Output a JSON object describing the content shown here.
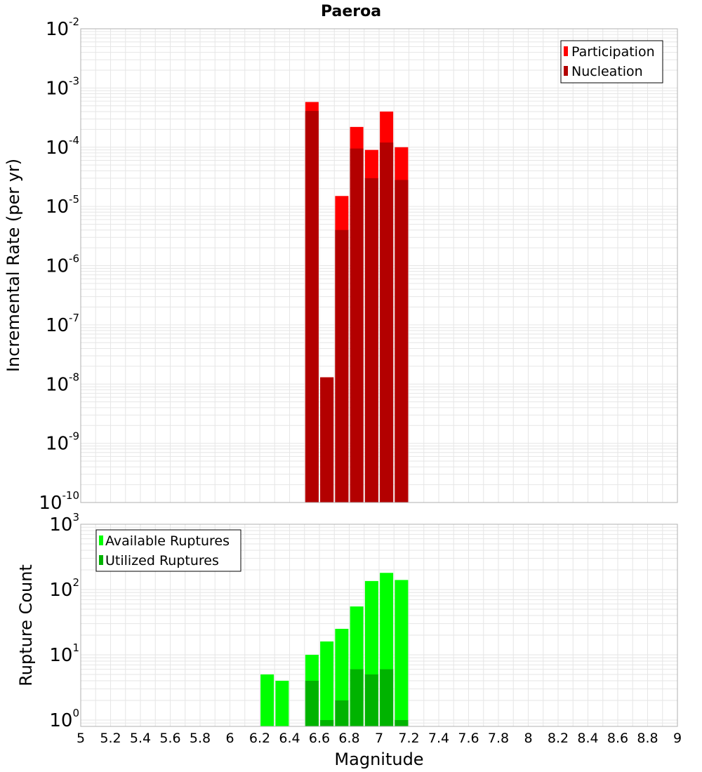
{
  "title": "Paeroa",
  "colors": {
    "participation": "#ff0000",
    "nucleation": "#b30000",
    "available": "#00ff00",
    "utilized": "#00b300",
    "grid": "#e6e6e6",
    "frame": "#b0b0b0"
  },
  "chart_data": [
    {
      "type": "bar",
      "panel": "top",
      "ylabel": "Incremental Rate (per yr)",
      "yscale": "log",
      "ylim": [
        1e-10,
        0.01
      ],
      "xlim": [
        5,
        9
      ],
      "grid": true,
      "legend_position": "top-right",
      "x": [
        6.55,
        6.65,
        6.75,
        6.85,
        6.95,
        7.05,
        7.15
      ],
      "series": [
        {
          "name": "Participation",
          "color": "#ff0000",
          "values": [
            0.00058,
            1.3e-08,
            1.5e-05,
            0.00022,
            9e-05,
            0.0004,
            0.0001
          ]
        },
        {
          "name": "Nucleation",
          "color": "#b30000",
          "values": [
            0.00041,
            1.3e-08,
            4e-06,
            9.5e-05,
            3e-05,
            0.00012,
            2.8e-05
          ]
        }
      ]
    },
    {
      "type": "bar",
      "panel": "bottom",
      "xlabel": "Magnitude",
      "ylabel": "Rupture Count",
      "yscale": "log",
      "ylim": [
        0.8,
        1000
      ],
      "xlim": [
        5,
        9
      ],
      "grid": true,
      "legend_position": "top-left",
      "x": [
        6.25,
        6.35,
        6.55,
        6.65,
        6.75,
        6.85,
        6.95,
        7.05,
        7.15
      ],
      "series": [
        {
          "name": "Available Ruptures",
          "color": "#00ff00",
          "values": [
            5,
            4,
            10,
            16,
            25,
            55,
            135,
            180,
            140
          ]
        },
        {
          "name": "Utilized Ruptures",
          "color": "#00b300",
          "values": [
            0,
            0,
            4,
            1,
            2,
            6,
            5,
            6,
            1
          ]
        }
      ]
    }
  ],
  "xticks": [
    "5",
    "5.2",
    "5.4",
    "5.6",
    "5.8",
    "6",
    "6.2",
    "6.4",
    "6.6",
    "6.8",
    "7",
    "7.2",
    "7.4",
    "7.6",
    "7.8",
    "8",
    "8.2",
    "8.4",
    "8.6",
    "8.8",
    "9"
  ],
  "top_yticks": [
    {
      "base": "10",
      "exp": "-10"
    },
    {
      "base": "10",
      "exp": "-9"
    },
    {
      "base": "10",
      "exp": "-8"
    },
    {
      "base": "10",
      "exp": "-7"
    },
    {
      "base": "10",
      "exp": "-6"
    },
    {
      "base": "10",
      "exp": "-5"
    },
    {
      "base": "10",
      "exp": "-4"
    },
    {
      "base": "10",
      "exp": "-3"
    },
    {
      "base": "10",
      "exp": "-2"
    }
  ],
  "bottom_yticks": [
    {
      "base": "10",
      "exp": "0"
    },
    {
      "base": "10",
      "exp": "1"
    },
    {
      "base": "10",
      "exp": "2"
    },
    {
      "base": "10",
      "exp": "3"
    }
  ]
}
